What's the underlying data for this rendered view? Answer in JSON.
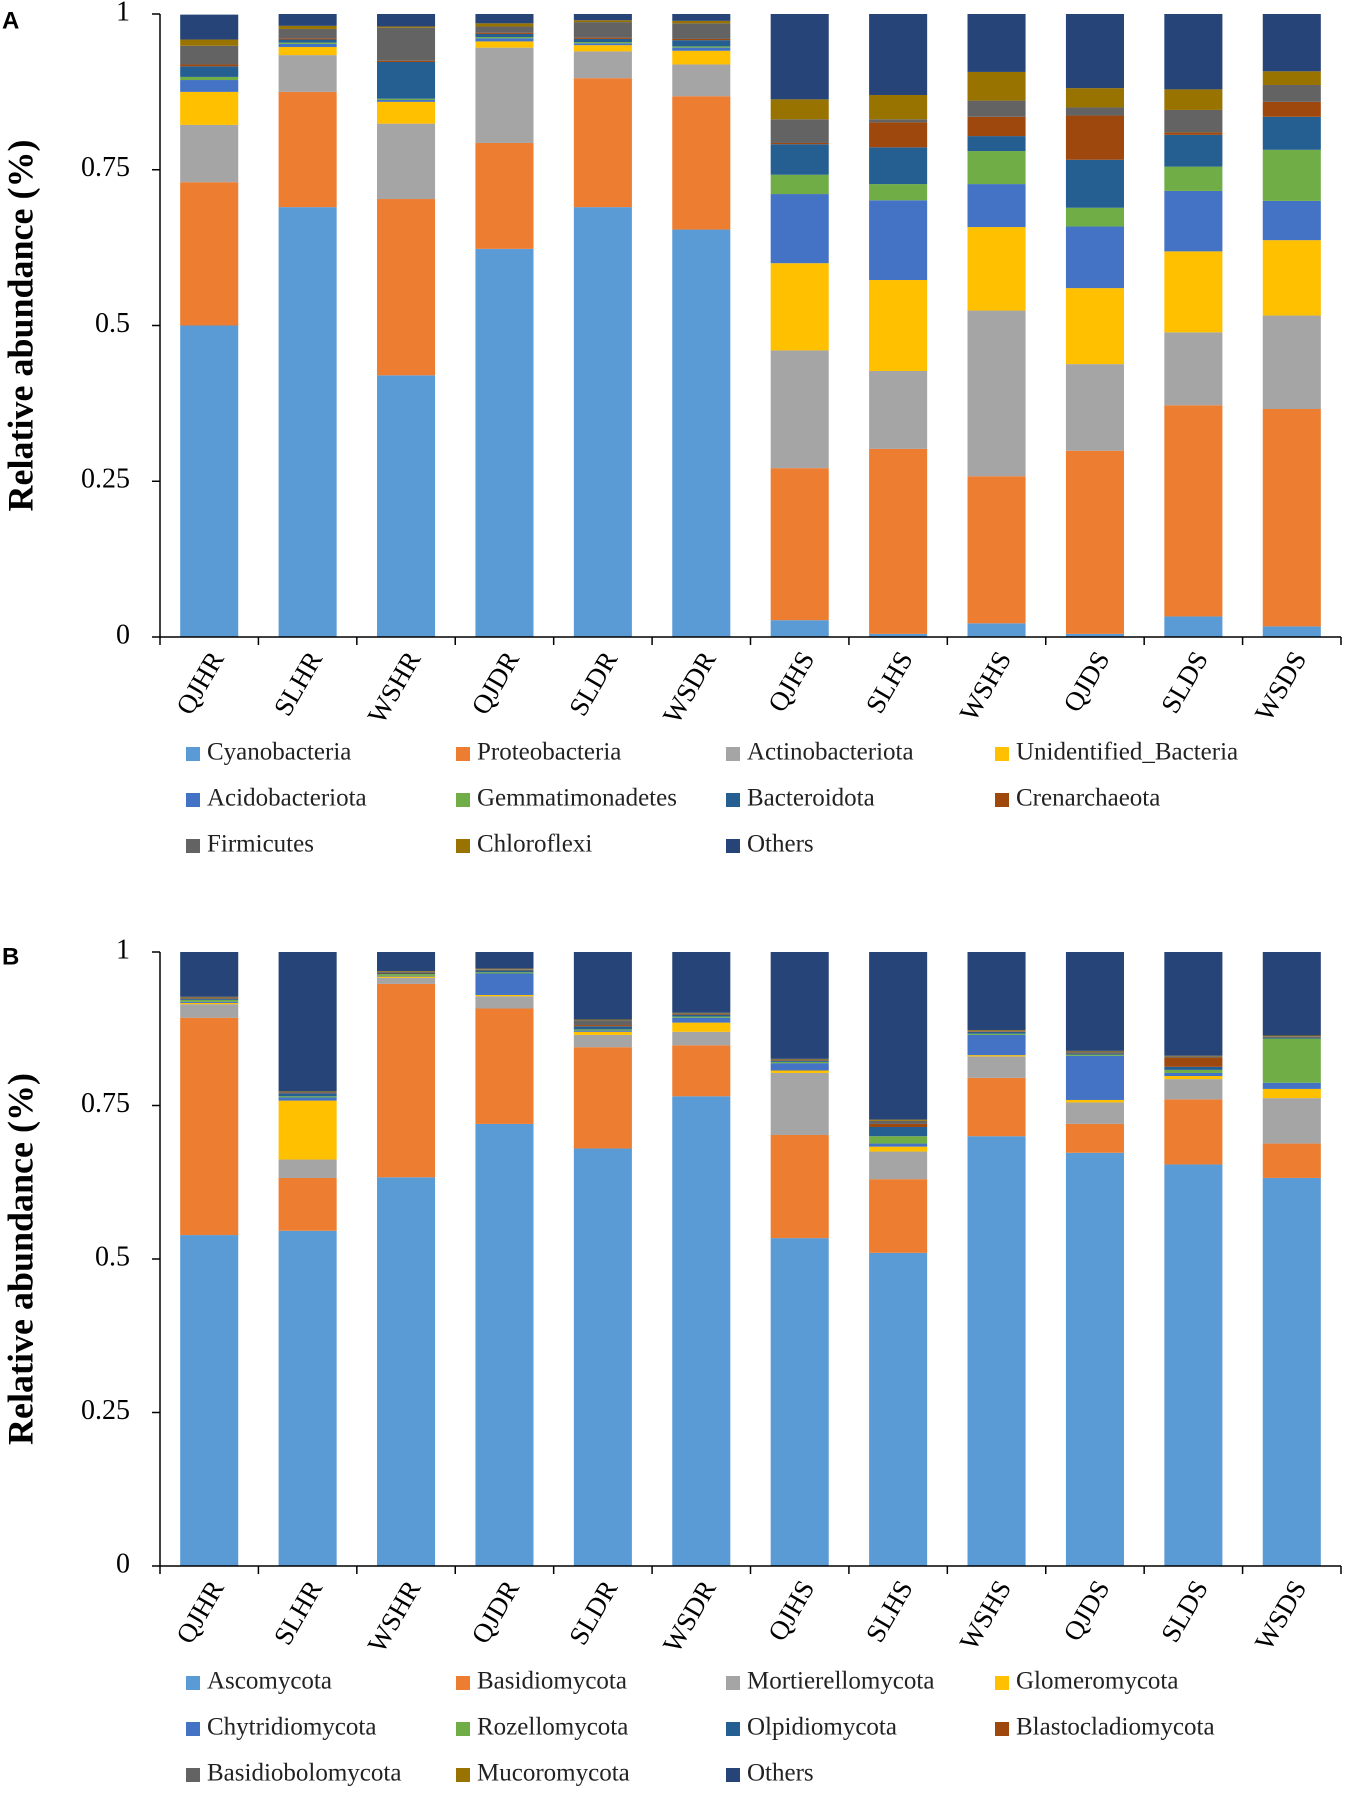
{
  "chart_data": [
    {
      "type": "stacked_bar",
      "panel_label": "A",
      "y_label": "Relative abundance (%)",
      "categories": [
        "QJHR",
        "SLHR",
        "WSHR",
        "QJDR",
        "SLDR",
        "WSDR",
        "QJHS",
        "SLHS",
        "WSHS",
        "QJDS",
        "SLDS",
        "WSDS"
      ],
      "ylim": [
        0,
        1
      ],
      "yticks": [
        0,
        0.25,
        0.5,
        0.75,
        1
      ],
      "series": [
        {
          "name": "Cyanobacteria",
          "color": "#5b9bd5",
          "values": [
            0.5,
            0.69,
            0.42,
            0.623,
            0.69,
            0.654,
            0.027,
            0.005,
            0.022,
            0.005,
            0.033,
            0.017
          ]
        },
        {
          "name": "Proteobacteria",
          "color": "#ed7d31",
          "values": [
            0.23,
            0.185,
            0.283,
            0.17,
            0.207,
            0.214,
            0.244,
            0.297,
            0.236,
            0.294,
            0.339,
            0.349
          ]
        },
        {
          "name": "Actinobacteriota",
          "color": "#a5a5a5",
          "values": [
            0.092,
            0.059,
            0.121,
            0.153,
            0.043,
            0.051,
            0.189,
            0.125,
            0.266,
            0.139,
            0.117,
            0.15
          ]
        },
        {
          "name": "Unidentified_Bacteria",
          "color": "#ffc000",
          "values": [
            0.053,
            0.013,
            0.035,
            0.01,
            0.01,
            0.022,
            0.14,
            0.146,
            0.134,
            0.122,
            0.13,
            0.121
          ]
        },
        {
          "name": "Acidobacteriota",
          "color": "#4472c4",
          "values": [
            0.019,
            0.005,
            0.003,
            0.005,
            0.003,
            0.005,
            0.111,
            0.128,
            0.069,
            0.099,
            0.097,
            0.063
          ]
        },
        {
          "name": "Gemmatimonadetes",
          "color": "#70ad47",
          "values": [
            0.005,
            0.002,
            0.002,
            0.002,
            0.002,
            0.002,
            0.031,
            0.026,
            0.053,
            0.03,
            0.039,
            0.082
          ]
        },
        {
          "name": "Bacteroidota",
          "color": "#255e91",
          "values": [
            0.017,
            0.005,
            0.059,
            0.005,
            0.005,
            0.01,
            0.049,
            0.059,
            0.024,
            0.077,
            0.051,
            0.053
          ]
        },
        {
          "name": "Crenarchaeota",
          "color": "#9e480e",
          "values": [
            0.003,
            0.002,
            0.002,
            0.002,
            0.002,
            0.002,
            0.002,
            0.04,
            0.031,
            0.071,
            0.004,
            0.024
          ]
        },
        {
          "name": "Firmicutes",
          "color": "#636363",
          "values": [
            0.03,
            0.015,
            0.053,
            0.01,
            0.025,
            0.025,
            0.038,
            0.005,
            0.026,
            0.013,
            0.036,
            0.027
          ]
        },
        {
          "name": "Chloroflexi",
          "color": "#997300",
          "values": [
            0.01,
            0.005,
            0.002,
            0.005,
            0.003,
            0.004,
            0.032,
            0.039,
            0.046,
            0.031,
            0.033,
            0.022
          ]
        },
        {
          "name": "Others",
          "color": "#264478",
          "values": [
            0.04,
            0.019,
            0.02,
            0.015,
            0.01,
            0.011,
            0.137,
            0.13,
            0.093,
            0.119,
            0.121,
            0.092
          ]
        }
      ]
    },
    {
      "type": "stacked_bar",
      "panel_label": "B",
      "y_label": "Relative abundance (%)",
      "categories": [
        "QJHR",
        "SLHR",
        "WSHR",
        "QJDR",
        "SLDR",
        "WSDR",
        "QJHS",
        "SLHS",
        "WSHS",
        "QJDS",
        "SLDS",
        "WSDS"
      ],
      "ylim": [
        0,
        1
      ],
      "yticks": [
        0,
        0.25,
        0.5,
        0.75,
        1
      ],
      "series": [
        {
          "name": "Ascomycota",
          "color": "#5b9bd5",
          "values": [
            0.539,
            0.546,
            0.633,
            0.72,
            0.68,
            0.765,
            0.534,
            0.51,
            0.7,
            0.673,
            0.654,
            0.632
          ]
        },
        {
          "name": "Basidiomycota",
          "color": "#ed7d31",
          "values": [
            0.354,
            0.086,
            0.315,
            0.188,
            0.165,
            0.083,
            0.168,
            0.12,
            0.095,
            0.047,
            0.106,
            0.056
          ]
        },
        {
          "name": "Mortierellomycota",
          "color": "#a5a5a5",
          "values": [
            0.022,
            0.03,
            0.01,
            0.02,
            0.02,
            0.022,
            0.101,
            0.045,
            0.035,
            0.035,
            0.033,
            0.074
          ]
        },
        {
          "name": "Glomeromycota",
          "color": "#ffc000",
          "values": [
            0.002,
            0.096,
            0.002,
            0.002,
            0.005,
            0.015,
            0.004,
            0.008,
            0.002,
            0.004,
            0.005,
            0.015
          ]
        },
        {
          "name": "Chytridiomycota",
          "color": "#4472c4",
          "values": [
            0.002,
            0.005,
            0.001,
            0.035,
            0.002,
            0.008,
            0.012,
            0.005,
            0.033,
            0.072,
            0.005,
            0.01
          ]
        },
        {
          "name": "Rozellomycota",
          "color": "#70ad47",
          "values": [
            0.003,
            0.002,
            0.003,
            0.002,
            0.002,
            0.002,
            0.002,
            0.012,
            0.002,
            0.002,
            0.005,
            0.072
          ]
        },
        {
          "name": "Olpidiomycota",
          "color": "#255e91",
          "values": [
            0.002,
            0.005,
            0.001,
            0.003,
            0.005,
            0.003,
            0.002,
            0.015,
            0.003,
            0.002,
            0.005,
            0.002
          ]
        },
        {
          "name": "Blastocladiomycota",
          "color": "#9e480e",
          "values": [
            0.001,
            0.001,
            0.001,
            0.001,
            0.002,
            0.001,
            0.001,
            0.005,
            0.001,
            0.001,
            0.015,
            0.001
          ]
        },
        {
          "name": "Basidiobolomycota",
          "color": "#636363",
          "values": [
            0.001,
            0.001,
            0.002,
            0.001,
            0.008,
            0.001,
            0.001,
            0.005,
            0.001,
            0.002,
            0.002,
            0.001
          ]
        },
        {
          "name": "Mucoromycota",
          "color": "#997300",
          "values": [
            0.001,
            0.001,
            0.001,
            0.001,
            0.001,
            0.001,
            0.001,
            0.002,
            0.001,
            0.001,
            0.001,
            0.001
          ]
        },
        {
          "name": "Others",
          "color": "#264478",
          "values": [
            0.073,
            0.227,
            0.031,
            0.027,
            0.11,
            0.099,
            0.174,
            0.273,
            0.127,
            0.161,
            0.169,
            0.136
          ]
        }
      ]
    }
  ]
}
